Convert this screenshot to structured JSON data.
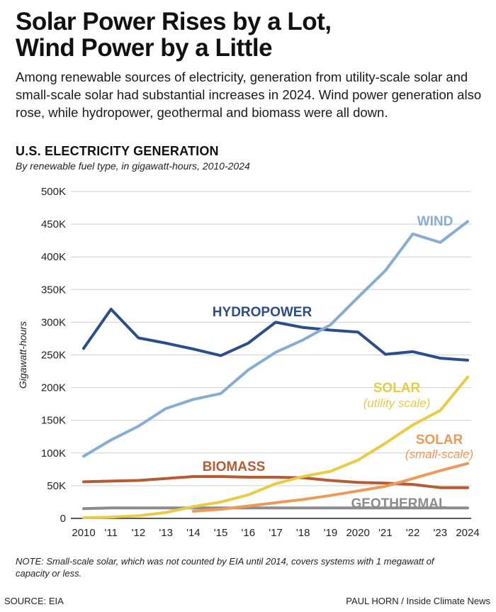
{
  "header": {
    "title_line1": "Solar Power Rises by a Lot,",
    "title_line2": "Wind Power by a Little",
    "subtitle": "Among renewable sources of electricity, generation from utility-scale solar and small-scale solar had substantial increases in 2024. Wind power generation also rose, while hydropower, geothermal and biomass were all down."
  },
  "chart_data": {
    "type": "line",
    "title": "U.S. ELECTRICITY GENERATION",
    "subtitle": "By renewable fuel type, in gigawatt-hours, 2010-2024",
    "ylabel": "Gigawatt-hours",
    "xlabel": "",
    "ylim": [
      0,
      500000
    ],
    "grid": true,
    "x": [
      2010,
      2011,
      2012,
      2013,
      2014,
      2015,
      2016,
      2017,
      2018,
      2019,
      2020,
      2021,
      2022,
      2023,
      2024
    ],
    "x_tick_labels": [
      "2010",
      "'11",
      "'12",
      "'13",
      "'14",
      "'15",
      "'16",
      "'17",
      "'18",
      "'19",
      "2020",
      "'21",
      "'22",
      "'23",
      "2024"
    ],
    "y_ticks": [
      0,
      50000,
      100000,
      150000,
      200000,
      250000,
      300000,
      350000,
      400000,
      450000,
      500000
    ],
    "y_tick_labels": [
      "0",
      "50K",
      "100K",
      "150K",
      "200K",
      "250K",
      "300K",
      "350K",
      "400K",
      "450K",
      "500K"
    ],
    "series": [
      {
        "name": "WIND",
        "color": "#86aed3",
        "values": [
          95000,
          120000,
          141000,
          168000,
          182000,
          191000,
          227000,
          254000,
          273000,
          296000,
          338000,
          379000,
          435000,
          422000,
          454000
        ]
      },
      {
        "name": "HYDROPOWER",
        "color": "#2b4d8c",
        "values": [
          260000,
          320000,
          276000,
          268000,
          259000,
          249000,
          268000,
          300000,
          292000,
          288000,
          285000,
          251000,
          255000,
          245000,
          242000
        ]
      },
      {
        "name": "SOLAR",
        "sublabel": "(utility scale)",
        "color": "#e8cc45",
        "values": [
          1000,
          2000,
          4000,
          9000,
          18000,
          25000,
          36000,
          53000,
          64000,
          72000,
          89000,
          115000,
          143000,
          165000,
          216000
        ]
      },
      {
        "name": "SOLAR",
        "sublabel": "(small-scale)",
        "color": "#ec9a5a",
        "values": [
          null,
          null,
          null,
          null,
          11000,
          14000,
          19000,
          24000,
          29000,
          35000,
          42000,
          49000,
          61000,
          73000,
          84000
        ]
      },
      {
        "name": "BIOMASS",
        "color": "#b85a34",
        "values": [
          56000,
          57000,
          58000,
          61000,
          64000,
          64000,
          63000,
          63000,
          62000,
          58000,
          55000,
          54000,
          52000,
          47000,
          47000
        ]
      },
      {
        "name": "GEOTHERMAL",
        "color": "#8c8c8c",
        "values": [
          15000,
          16000,
          16000,
          16000,
          16000,
          16000,
          16000,
          16000,
          16000,
          16000,
          16000,
          16000,
          16000,
          16000,
          16000
        ]
      }
    ]
  },
  "footer": {
    "note": "NOTE: Small-scale solar, which was not counted by EIA until 2014, covers systems with 1 megawatt of capacity or less.",
    "source": "SOURCE: EIA",
    "credit": "PAUL HORN / Inside Climate News"
  }
}
